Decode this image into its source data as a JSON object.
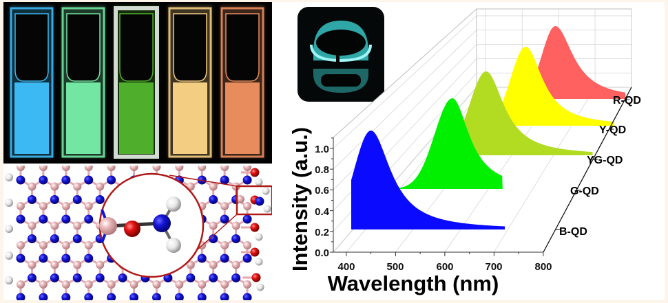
{
  "panels": {
    "photo_caption": "",
    "cuvette_colors": [
      "#3cb8f2",
      "#72e6a2",
      "#4fae2c",
      "#f3cd82",
      "#e88c5e"
    ],
    "ring_glow_color": "#3fdcdc"
  },
  "molecule": {
    "boron_color": "#e9b6b8",
    "nitrogen_color": "#1414d8",
    "oxygen_color": "#e01010",
    "hydrogen_color": "#f2f2f2",
    "highlight_color": "#b01818"
  },
  "chart_data": {
    "type": "area",
    "style": "3d-waterfall",
    "title": "",
    "xlabel": "Wavelength (nm)",
    "ylabel": "Intensity (a.u.)",
    "xlim": [
      375,
      800
    ],
    "ylim": [
      0,
      1.1
    ],
    "xticks": [
      "400",
      "500",
      "600",
      "700",
      "800"
    ],
    "xtick_values": [
      400,
      500,
      600,
      700,
      800
    ],
    "yticks": [
      "0.0",
      "0.2",
      "0.4",
      "0.6",
      "0.8",
      "1.0"
    ],
    "ytick_values": [
      0,
      0.2,
      0.4,
      0.6,
      0.8,
      1.0
    ],
    "grid": true,
    "legend": "depth-axis-right",
    "series": [
      {
        "name": "B-QD",
        "color": "#0a0aff",
        "peak_nm": 450,
        "peak_intensity": 1.0,
        "left_sigma_nm": 34,
        "right_hwhm_nm": 49,
        "range_nm": [
          410,
          722
        ]
      },
      {
        "name": "G-QD",
        "color": "#00f000",
        "peak_nm": 530,
        "peak_intensity": 1.0,
        "left_sigma_nm": 40,
        "right_hwhm_nm": 46,
        "range_nm": [
          400,
          643
        ]
      },
      {
        "name": "YG-QD",
        "color": "#b2dc22",
        "peak_nm": 545,
        "peak_intensity": 1.0,
        "left_sigma_nm": 40,
        "right_hwhm_nm": 52,
        "range_nm": [
          420,
          800
        ]
      },
      {
        "name": "Y-QD",
        "color": "#ffff00",
        "peak_nm": 575,
        "peak_intensity": 1.0,
        "left_sigma_nm": 38,
        "right_hwhm_nm": 52,
        "range_nm": [
          450,
          800
        ]
      },
      {
        "name": "R-QD",
        "color": "#ff6060",
        "peak_nm": 595,
        "peak_intensity": 1.0,
        "left_sigma_nm": 36,
        "right_hwhm_nm": 58,
        "range_nm": [
          480,
          783
        ]
      }
    ]
  }
}
